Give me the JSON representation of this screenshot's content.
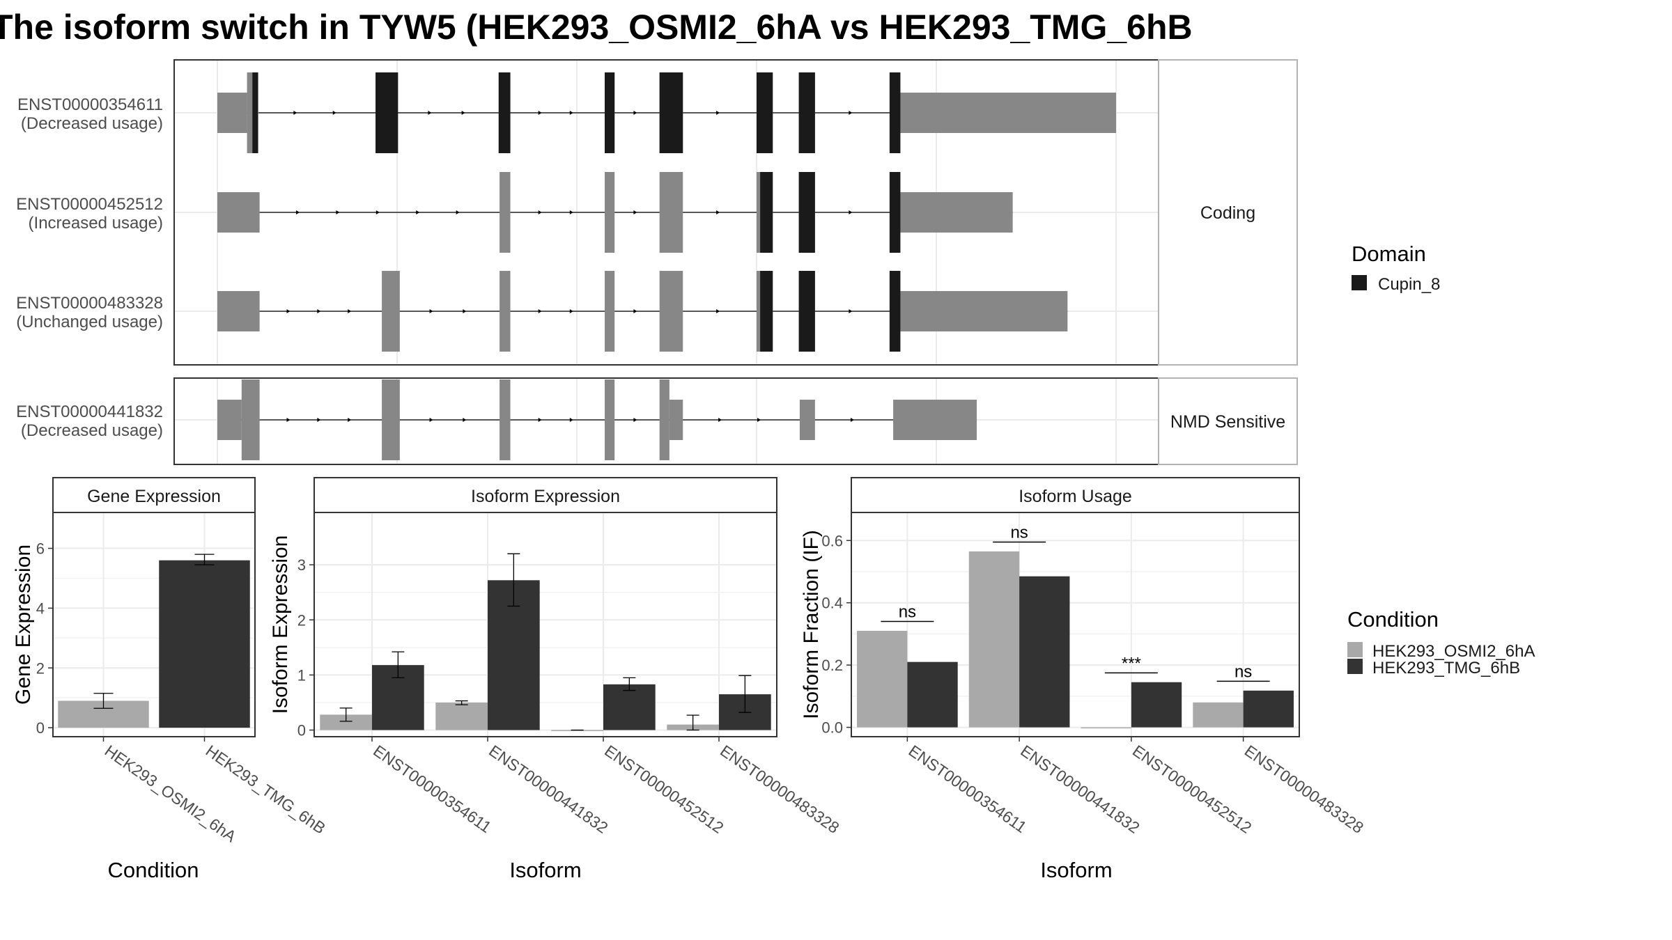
{
  "title": "The isoform switch in TYW5 (HEK293_OSMI2_6hA vs HEK293_TMG_6hB",
  "colors": {
    "osmi2": "#a9a9a9",
    "tmg": "#333333",
    "domain": "#1a1a1a",
    "utr": "#878787",
    "grid": "#ebebeb",
    "frame": "#333333",
    "strip": "#ffffff"
  },
  "transcripts": {
    "genomic_range": [
      0,
      100
    ],
    "panels": [
      {
        "label": "Coding",
        "tracks": [
          {
            "id": "ENST00000354611",
            "usage": "(Decreased usage)",
            "exons": [
              [
                0,
                3.3,
                "utr5"
              ],
              [
                3.3,
                4.5,
                "cds"
              ],
              [
                4.5,
                4.5,
                "cds"
              ],
              [
                17.6,
                20.1,
                "cds"
              ],
              [
                31.3,
                32.6,
                "cds"
              ],
              [
                43.1,
                44.2,
                "cds"
              ],
              [
                49.2,
                51.8,
                "cds"
              ],
              [
                60.0,
                61.8,
                "cds"
              ],
              [
                64.7,
                66.5,
                "cds"
              ],
              [
                74.8,
                76.0,
                "cds"
              ],
              [
                76.0,
                100,
                "utr3"
              ]
            ],
            "domain_exons": [
              [
                3.9,
                4.5
              ],
              [
                17.6,
                20.1
              ],
              [
                31.3,
                32.6
              ],
              [
                43.1,
                44.2
              ],
              [
                49.2,
                51.8
              ],
              [
                60.0,
                61.8
              ],
              [
                64.7,
                66.5
              ],
              [
                74.8,
                76.0
              ]
            ]
          },
          {
            "id": "ENST00000452512",
            "usage": "(Increased usage)",
            "exons": [
              [
                0,
                4.7,
                "utr5"
              ],
              [
                31.4,
                32.6,
                "cds"
              ],
              [
                43.1,
                44.2,
                "cds"
              ],
              [
                49.2,
                51.8,
                "cds"
              ],
              [
                60.0,
                61.8,
                "cds"
              ],
              [
                64.7,
                66.5,
                "cds"
              ],
              [
                74.8,
                76.0,
                "cds"
              ],
              [
                76.0,
                88.5,
                "utr3"
              ]
            ],
            "domain_exons": [
              [
                60.4,
                61.8
              ],
              [
                64.7,
                66.5
              ],
              [
                74.8,
                76.0
              ]
            ]
          },
          {
            "id": "ENST00000483328",
            "usage": "(Unchanged usage)",
            "exons": [
              [
                0,
                4.7,
                "utr5"
              ],
              [
                18.3,
                20.3,
                "cds"
              ],
              [
                31.4,
                32.6,
                "cds"
              ],
              [
                43.1,
                44.2,
                "cds"
              ],
              [
                49.2,
                51.8,
                "cds"
              ],
              [
                60.0,
                61.8,
                "cds"
              ],
              [
                64.7,
                66.5,
                "cds"
              ],
              [
                74.8,
                76.0,
                "cds"
              ],
              [
                76.0,
                94.6,
                "utr3"
              ]
            ],
            "domain_exons": [
              [
                60.4,
                61.8
              ],
              [
                64.7,
                66.5
              ],
              [
                74.8,
                76.0
              ]
            ]
          }
        ]
      },
      {
        "label": "NMD Sensitive",
        "tracks": [
          {
            "id": "ENST00000441832",
            "usage": "(Decreased usage)",
            "exons": [
              [
                0,
                2.7,
                "utr5"
              ],
              [
                2.7,
                4.7,
                "cds"
              ],
              [
                18.3,
                20.3,
                "cds"
              ],
              [
                31.4,
                32.6,
                "cds"
              ],
              [
                43.1,
                44.2,
                "cds"
              ],
              [
                49.2,
                50.3,
                "cds"
              ],
              [
                50.3,
                51.8,
                "utr3"
              ],
              [
                64.8,
                66.5,
                "utr3"
              ],
              [
                75.2,
                84.5,
                "utr3"
              ]
            ],
            "domain_exons": []
          }
        ]
      }
    ]
  },
  "legend_domain": {
    "title": "Domain",
    "items": [
      {
        "label": "Cupin_8",
        "color": "#1a1a1a"
      }
    ]
  },
  "legend_condition": {
    "title": "Condition",
    "items": [
      {
        "label": "HEK293_OSMI2_6hA",
        "color": "#a9a9a9"
      },
      {
        "label": "HEK293_TMG_6hB",
        "color": "#333333"
      }
    ]
  },
  "chart_data": [
    {
      "type": "bar",
      "title": "Gene Expression",
      "xlabel": "Condition",
      "ylabel": "Gene Expression",
      "ylim": [
        -0.3,
        7.2
      ],
      "yticks": [
        0,
        2,
        4,
        6
      ],
      "categories": [
        "HEK293_OSMI2_6hA",
        "HEK293_TMG_6hB"
      ],
      "values": [
        0.9,
        5.6
      ],
      "errors": [
        [
          0.65,
          1.15
        ],
        [
          5.45,
          5.8
        ]
      ]
    },
    {
      "type": "bar",
      "title": "Isoform Expression",
      "xlabel": "Isoform",
      "ylabel": "Isoform Expression",
      "ylim": [
        -0.12,
        3.95
      ],
      "yticks": [
        0,
        1,
        2,
        3
      ],
      "categories": [
        "ENST00000354611",
        "ENST00000441832",
        "ENST00000452512",
        "ENST00000483328"
      ],
      "series": [
        {
          "name": "HEK293_OSMI2_6hA",
          "values": [
            0.28,
            0.5,
            0.0,
            0.1
          ],
          "errors": [
            [
              0.16,
              0.4
            ],
            [
              0.46,
              0.53
            ],
            [
              0.0,
              0.0
            ],
            [
              0.0,
              0.27
            ]
          ]
        },
        {
          "name": "HEK293_TMG_6hB",
          "values": [
            1.18,
            2.72,
            0.83,
            0.65
          ],
          "errors": [
            [
              0.95,
              1.42
            ],
            [
              2.25,
              3.2
            ],
            [
              0.72,
              0.95
            ],
            [
              0.32,
              0.99
            ]
          ]
        }
      ]
    },
    {
      "type": "bar",
      "title": "Isoform Usage",
      "xlabel": "Isoform",
      "ylabel": "Isoform Fraction (IF)",
      "ylim": [
        -0.03,
        0.69
      ],
      "yticks": [
        0.0,
        0.2,
        0.4,
        0.6
      ],
      "ytick_labels": [
        "0.0",
        "0.2",
        "0.4",
        "0.6"
      ],
      "categories": [
        "ENST00000354611",
        "ENST00000441832",
        "ENST00000452512",
        "ENST00000483328"
      ],
      "series": [
        {
          "name": "HEK293_OSMI2_6hA",
          "values": [
            0.31,
            0.565,
            0.0,
            0.08
          ]
        },
        {
          "name": "HEK293_TMG_6hB",
          "values": [
            0.21,
            0.485,
            0.145,
            0.118
          ]
        }
      ],
      "significance": [
        {
          "label": "ns",
          "y": 0.34
        },
        {
          "label": "ns",
          "y": 0.595
        },
        {
          "label": "***",
          "y": 0.175
        },
        {
          "label": "ns",
          "y": 0.148
        }
      ]
    }
  ]
}
